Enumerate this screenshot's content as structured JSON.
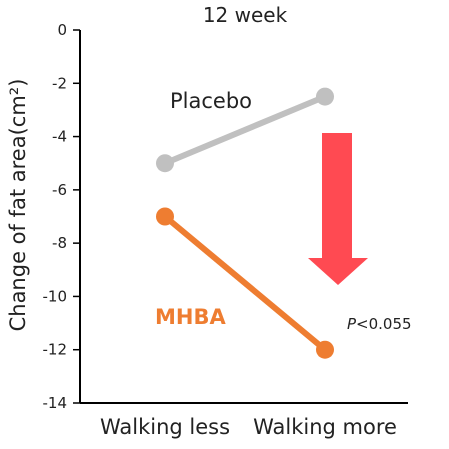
{
  "chart_data": {
    "type": "line",
    "title": "12 week",
    "ylabel": "Change of fat area(cm²)",
    "xlabel": "",
    "categories": [
      "Walking less",
      "Walking more"
    ],
    "ylim": [
      -14,
      0
    ],
    "yticks": [
      0,
      -2,
      -4,
      -6,
      -8,
      -10,
      -12,
      -14
    ],
    "grid": false,
    "series": [
      {
        "name": "Placebo",
        "values": [
          -5,
          -2.5
        ],
        "color": "#c0c0c0"
      },
      {
        "name": "MHBA",
        "values": [
          -7,
          -12
        ],
        "color": "#ee7d31"
      }
    ],
    "annotations": {
      "p_value_prefix": "P",
      "p_value_rest": "<0.055",
      "arrow_color": "#ff4a52",
      "arrow_direction": "down"
    }
  }
}
